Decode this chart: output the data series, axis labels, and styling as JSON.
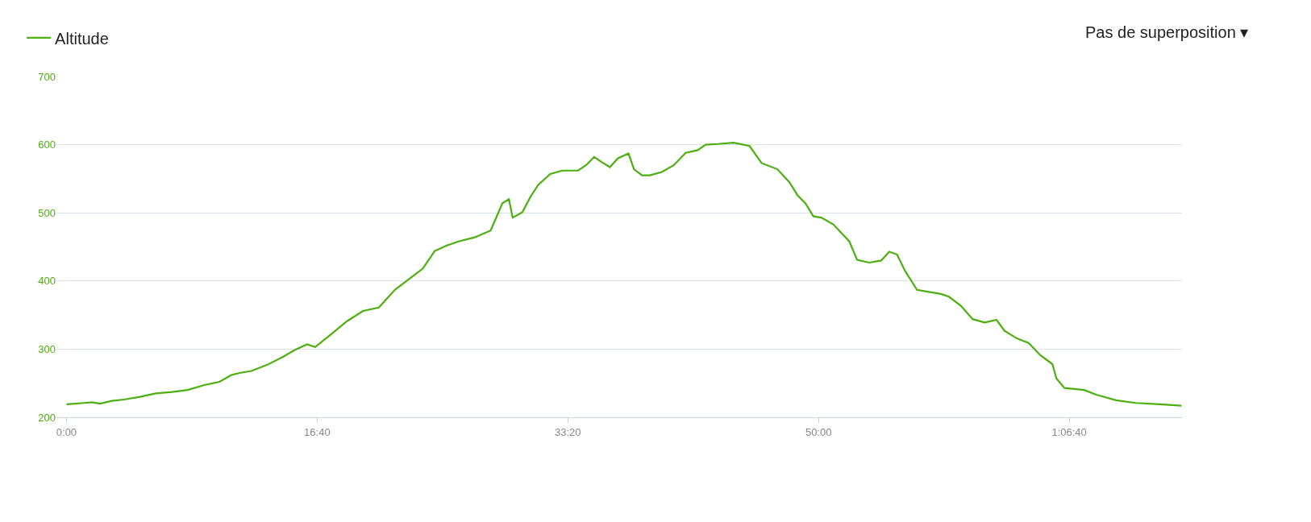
{
  "chart_data": {
    "type": "line",
    "annotations": [
      "Pas de superposition ▾"
    ],
    "legend": "top left",
    "grid": "y",
    "marker": "none",
    "line_style": "solid",
    "xlim": [
      -40,
      4450
    ],
    "xticks": [
      {
        "value": 0,
        "label": "0:00"
      },
      {
        "value": 1000,
        "label": "16:40"
      },
      {
        "value": 2000,
        "label": "33:20"
      },
      {
        "value": 3000,
        "label": "50:00"
      },
      {
        "value": 4000,
        "label": "1:06:40"
      }
    ],
    "ylim": [
      200,
      700
    ],
    "yticks": [
      200,
      300,
      400,
      500,
      600,
      700
    ],
    "series": [
      {
        "name": "Altitude",
        "color": "#4caf10",
        "x": [
          0,
          70,
          102,
          134,
          181,
          229,
          293,
          356,
          420,
          483,
          547,
          610,
          658,
          690,
          738,
          801,
          865,
          912,
          960,
          992,
          1056,
          1119,
          1183,
          1246,
          1310,
          1374,
          1421,
          1469,
          1517,
          1564,
          1628,
          1692,
          1739,
          1765,
          1780,
          1819,
          1850,
          1882,
          1930,
          1978,
          2041,
          2073,
          2105,
          2137,
          2168,
          2200,
          2242,
          2264,
          2296,
          2327,
          2375,
          2423,
          2470,
          2518,
          2550,
          2598,
          2661,
          2725,
          2773,
          2836,
          2884,
          2916,
          2948,
          2979,
          3011,
          3059,
          3123,
          3154,
          3202,
          3250,
          3282,
          3313,
          3345,
          3393,
          3440,
          3488,
          3520,
          3567,
          3615,
          3663,
          3710,
          3742,
          3790,
          3838,
          3885,
          3933,
          3949,
          3981,
          4060,
          4108,
          4187,
          4266,
          4362,
          4448
        ],
        "values": [
          219,
          221,
          222,
          220,
          224,
          226,
          230,
          235,
          237,
          240,
          247,
          252,
          262,
          265,
          268,
          277,
          289,
          299,
          307,
          303,
          322,
          341,
          356,
          361,
          387,
          405,
          418,
          444,
          452,
          458,
          464,
          474,
          514,
          520,
          493,
          501,
          523,
          541,
          557,
          562,
          562,
          570,
          582,
          574,
          567,
          580,
          587,
          564,
          555,
          555,
          560,
          570,
          588,
          592,
          600,
          601,
          603,
          598,
          573,
          564,
          545,
          526,
          514,
          495,
          493,
          483,
          458,
          431,
          427,
          430,
          443,
          439,
          415,
          387,
          384,
          381,
          377,
          364,
          344,
          339,
          343,
          327,
          316,
          309,
          291,
          278,
          257,
          243,
          240,
          233,
          225,
          221,
          219,
          217
        ]
      }
    ]
  }
}
